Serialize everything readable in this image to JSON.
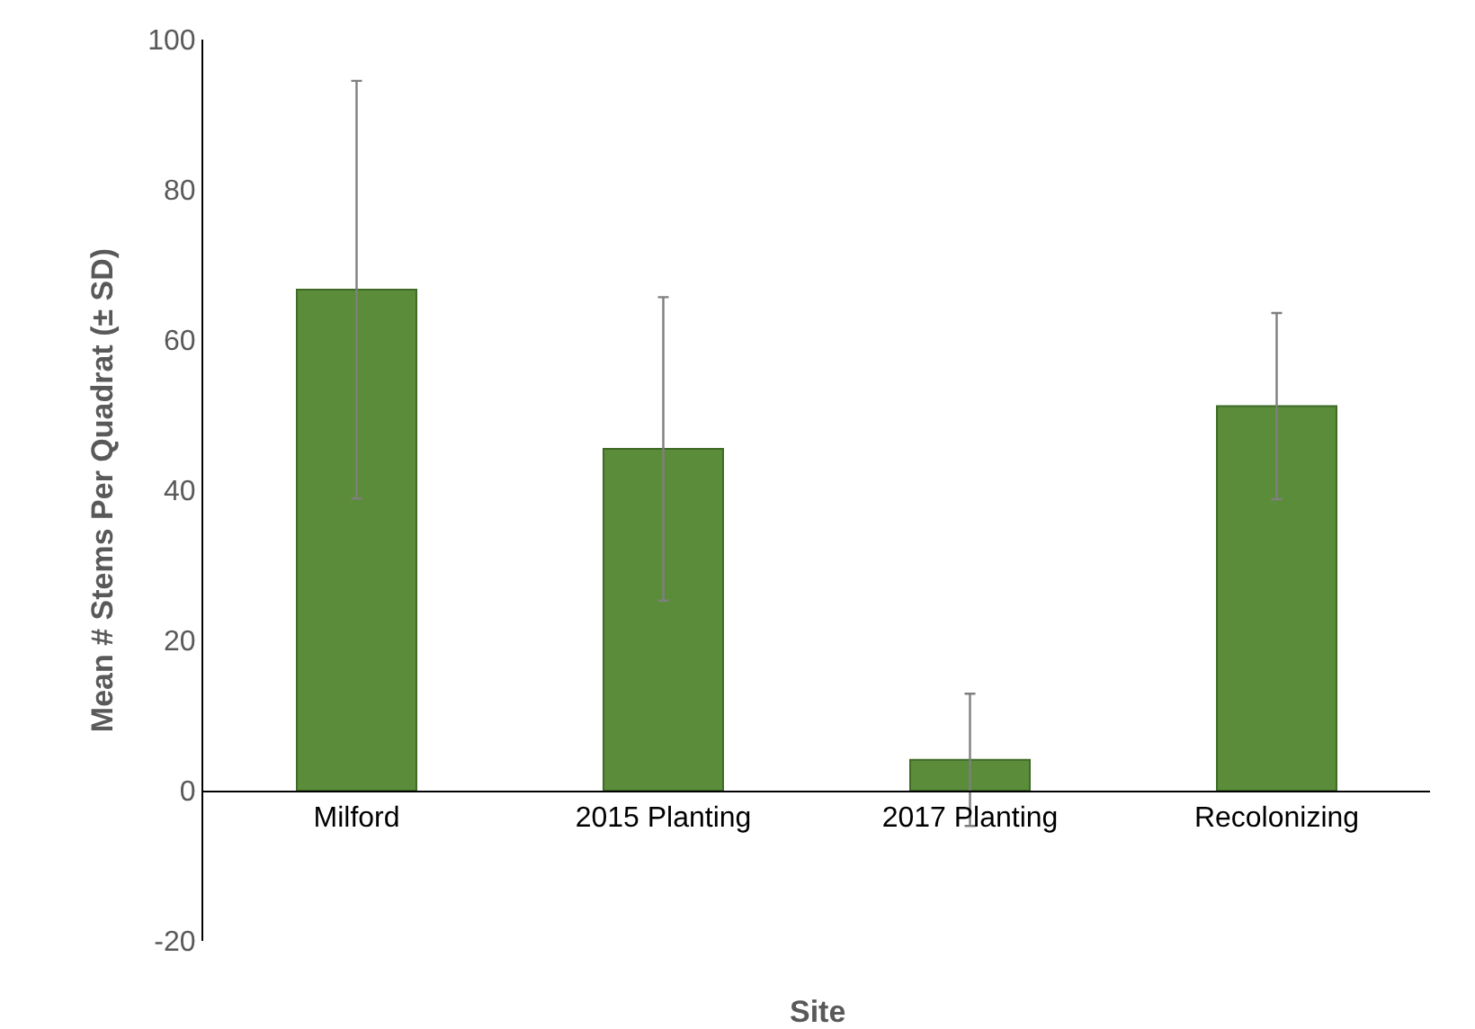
{
  "chart_data": {
    "type": "bar",
    "xlabel": "Site",
    "ylabel": "Mean # Stems Per Quadrat (± SD)",
    "categories": [
      "Milford",
      "2015 Planting",
      "2017 Planting",
      "Recolonizing"
    ],
    "values": [
      66.7,
      45.5,
      4.1,
      51.2
    ],
    "errors": [
      27.8,
      20.2,
      8.8,
      12.4
    ],
    "color": "#5b8c3a",
    "ylim": [
      -20,
      100
    ],
    "yticks": [
      -20,
      0,
      20,
      40,
      60,
      80,
      100
    ],
    "legend": false
  }
}
